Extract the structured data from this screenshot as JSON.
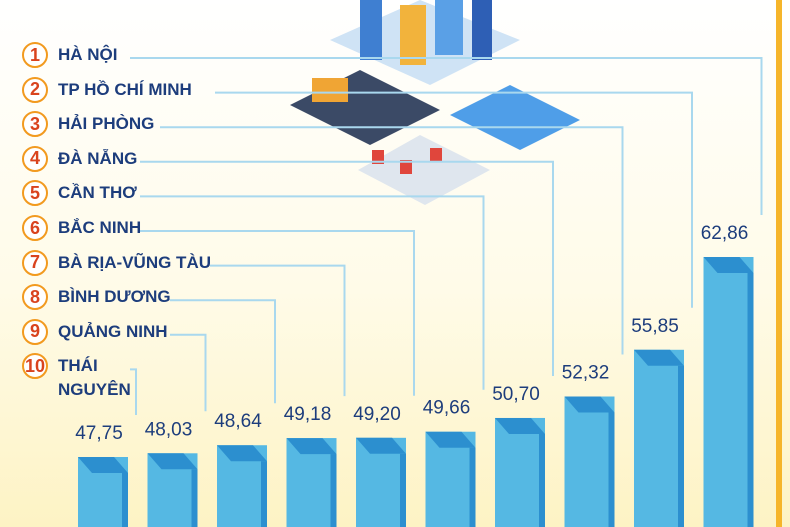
{
  "chart_data": {
    "type": "bar",
    "ranks": [
      1,
      2,
      3,
      4,
      5,
      6,
      7,
      8,
      9,
      10
    ],
    "categories": [
      "HÀ NỘI",
      "TP HỒ CHÍ MINH",
      "HẢI PHÒNG",
      "ĐÀ NẴNG",
      "CẦN THƠ",
      "BẮC NINH",
      "BÀ RỊA-VŨNG TÀU",
      "BÌNH DƯƠNG",
      "QUẢNG NINH",
      "THÁI NGUYÊN"
    ],
    "values": [
      62.86,
      55.85,
      52.32,
      50.7,
      49.66,
      49.2,
      49.18,
      48.64,
      48.03,
      47.75
    ],
    "value_labels": [
      "62,86",
      "55,85",
      "52,32",
      "50,70",
      "49,66",
      "49,20",
      "49,18",
      "48,64",
      "48,03",
      "47,75"
    ],
    "color": "#55b8e3"
  }
}
